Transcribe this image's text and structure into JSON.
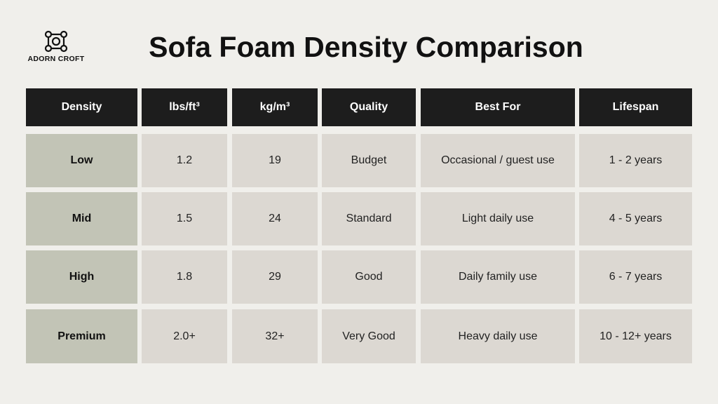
{
  "header": {
    "brand": "ADORN CROFT",
    "title": "Sofa Foam Density Comparison"
  },
  "table": {
    "columns": [
      "Density",
      "lbs/ft³",
      "kg/m³",
      "Quality",
      "Best For",
      "Lifespan"
    ],
    "rows": [
      [
        "Low",
        "1.2",
        "19",
        "Budget",
        "Occasional / guest use",
        "1 - 2 years"
      ],
      [
        "Mid",
        "1.5",
        "24",
        "Standard",
        "Light daily use",
        "4 - 5 years"
      ],
      [
        "High",
        "1.8",
        "29",
        "Good",
        "Daily family use",
        "6 - 7 years"
      ],
      [
        "Premium",
        "2.0+",
        "32+",
        "Very Good",
        "Heavy daily use",
        "10 - 12+ years"
      ]
    ]
  }
}
